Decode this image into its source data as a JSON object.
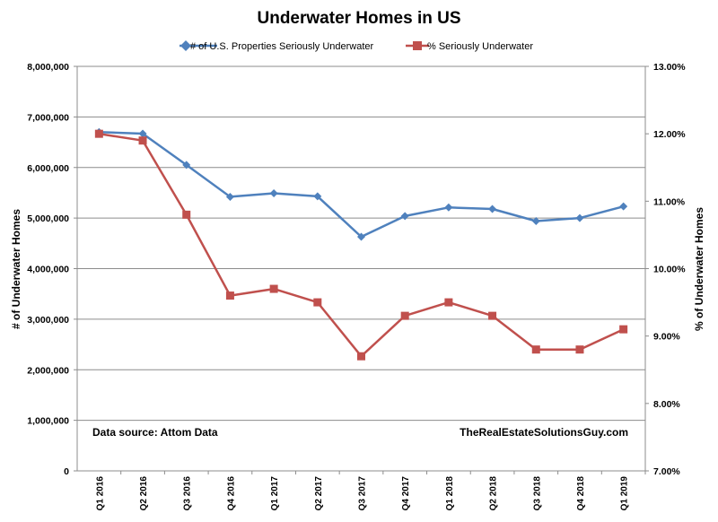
{
  "chart_data": {
    "type": "line",
    "title": "Underwater Homes in US",
    "categories": [
      "Q1 2016",
      "Q2 2016",
      "Q3 2016",
      "Q4 2016",
      "Q1 2017",
      "Q2 2017",
      "Q3 2017",
      "Q4 2017",
      "Q1 2018",
      "Q2 2018",
      "Q3 2018",
      "Q4 2018",
      "Q1 2019"
    ],
    "series": [
      {
        "name": "# of U.S. Properties Seriously Underwater",
        "axis": "left",
        "color": "#4f81bd",
        "marker": "diamond",
        "values": [
          6700000,
          6670000,
          6050000,
          5420000,
          5490000,
          5430000,
          4630000,
          5040000,
          5210000,
          5180000,
          4940000,
          5000000,
          5230000
        ]
      },
      {
        "name": "% Seriously Underwater",
        "axis": "right",
        "color": "#c0504d",
        "marker": "square",
        "values": [
          12.0,
          11.9,
          10.8,
          9.6,
          9.7,
          9.5,
          8.7,
          9.3,
          9.5,
          9.3,
          8.8,
          8.8,
          9.1
        ]
      }
    ],
    "ylabel": "# of Underwater Homes",
    "ylim": [
      0,
      8000000
    ],
    "yticks": [
      "0",
      "1,000,000",
      "2,000,000",
      "3,000,000",
      "4,000,000",
      "5,000,000",
      "6,000,000",
      "7,000,000",
      "8,000,000"
    ],
    "y2label": "% of Underwater Homes",
    "y2lim": [
      7.0,
      13.0
    ],
    "y2ticks": [
      "7.00%",
      "8.00%",
      "9.00%",
      "10.00%",
      "11.00%",
      "12.00%",
      "13.00%"
    ],
    "grid": true,
    "legend": "top-center",
    "annotations": [
      "Data source:  Attom Data",
      "TheRealEstateSolutionsGuy.com"
    ]
  }
}
